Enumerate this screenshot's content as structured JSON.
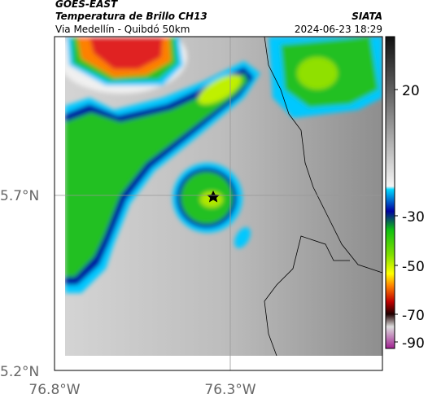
{
  "header": {
    "source": "GOES-EAST",
    "product": "Temperatura de Brillo CH13",
    "region": "Via Medellín - Quibdó 50km",
    "agency": "SIATA",
    "timestamp": "2024-06-23 18:29"
  },
  "map": {
    "lat_labels": [
      "5.7°N",
      "5.2°N"
    ],
    "lon_labels": [
      "76.8°W",
      "76.3°W"
    ]
  },
  "colorbar": {
    "ticks": [
      "20",
      "-30",
      "-50",
      "-70",
      "-90"
    ]
  }
}
